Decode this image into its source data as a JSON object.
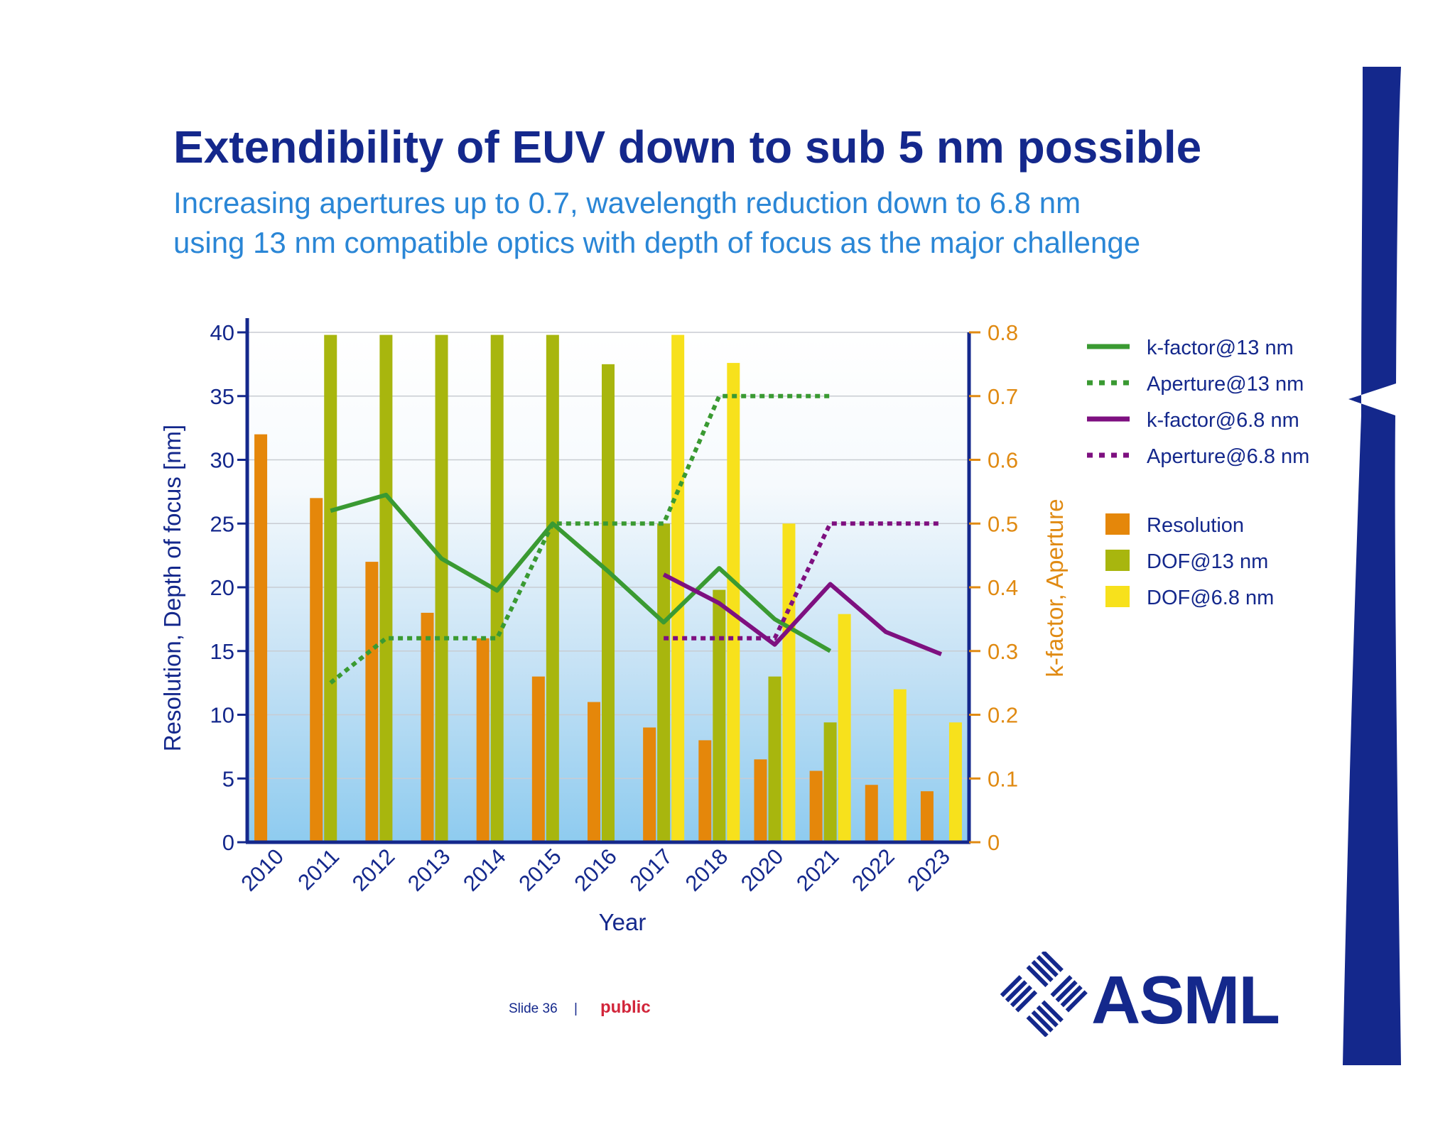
{
  "slide": {
    "title": "Extendibility of EUV down to sub 5 nm possible",
    "subtitle_line1": "Increasing apertures up to 0.7, wavelength reduction down to 6.8 nm",
    "subtitle_line2": "using 13 nm compatible optics with depth of focus as the major challenge",
    "footer_slide": "Slide 36",
    "footer_separator": "|",
    "footer_classification": "public",
    "logo_text": "ASML",
    "brand_color": "#14288c"
  },
  "chart_data": {
    "type": "bar",
    "xlabel": "Year",
    "ylabel_left": "Resolution, Depth of focus [nm]",
    "ylabel_right": "k-factor, Aperture",
    "categories": [
      "2010",
      "2011",
      "2012",
      "2013",
      "2014",
      "2015",
      "2016",
      "2017",
      "2018",
      "2020",
      "2021",
      "2022",
      "2023"
    ],
    "ylim_left": [
      0,
      40
    ],
    "yticks_left": [
      "0",
      "5",
      "10",
      "15",
      "20",
      "25",
      "30",
      "35",
      "40"
    ],
    "ylim_right": [
      0,
      0.8
    ],
    "yticks_right": [
      "0",
      "0.1",
      "0.2",
      "0.3",
      "0.4",
      "0.5",
      "0.6",
      "0.7",
      "0.8"
    ],
    "grid": true,
    "legend_position": "right",
    "bar_series": [
      {
        "name": "Resolution",
        "color": "#e5870a",
        "values": [
          32,
          27,
          22,
          18,
          16,
          13,
          11,
          9,
          8,
          6.5,
          5.6,
          4.5,
          4
        ]
      },
      {
        "name": "DOF@13 nm",
        "color": "#a8b60e",
        "values": [
          null,
          39.8,
          39.8,
          39.8,
          39.8,
          39.8,
          37.5,
          25,
          19.8,
          13,
          9.4,
          null,
          null
        ]
      },
      {
        "name": "DOF@6.8 nm",
        "color": "#f7e11c",
        "values": [
          null,
          null,
          null,
          null,
          null,
          null,
          null,
          39.8,
          37.6,
          25,
          17.9,
          12,
          9.4
        ]
      }
    ],
    "line_series": [
      {
        "name": "k-factor@13 nm",
        "color": "#3a9a32",
        "style": "solid",
        "values": [
          null,
          0.52,
          0.545,
          0.445,
          0.395,
          0.5,
          0.425,
          0.345,
          0.43,
          0.35,
          0.3,
          null,
          null
        ]
      },
      {
        "name": "Aperture@13 nm",
        "color": "#3a9a32",
        "style": "dotted",
        "values": [
          null,
          0.25,
          0.32,
          0.32,
          0.32,
          0.5,
          0.5,
          0.5,
          0.7,
          0.7,
          0.7,
          null,
          null
        ]
      },
      {
        "name": "k-factor@6.8 nm",
        "color": "#7e1080",
        "style": "solid",
        "values": [
          null,
          null,
          null,
          null,
          null,
          null,
          null,
          0.42,
          0.375,
          0.31,
          0.405,
          0.33,
          0.295
        ]
      },
      {
        "name": "Aperture@6.8 nm",
        "color": "#7e1080",
        "style": "dotted",
        "values": [
          null,
          null,
          null,
          null,
          null,
          null,
          null,
          0.32,
          0.32,
          0.32,
          0.5,
          0.5,
          0.5
        ]
      }
    ]
  }
}
